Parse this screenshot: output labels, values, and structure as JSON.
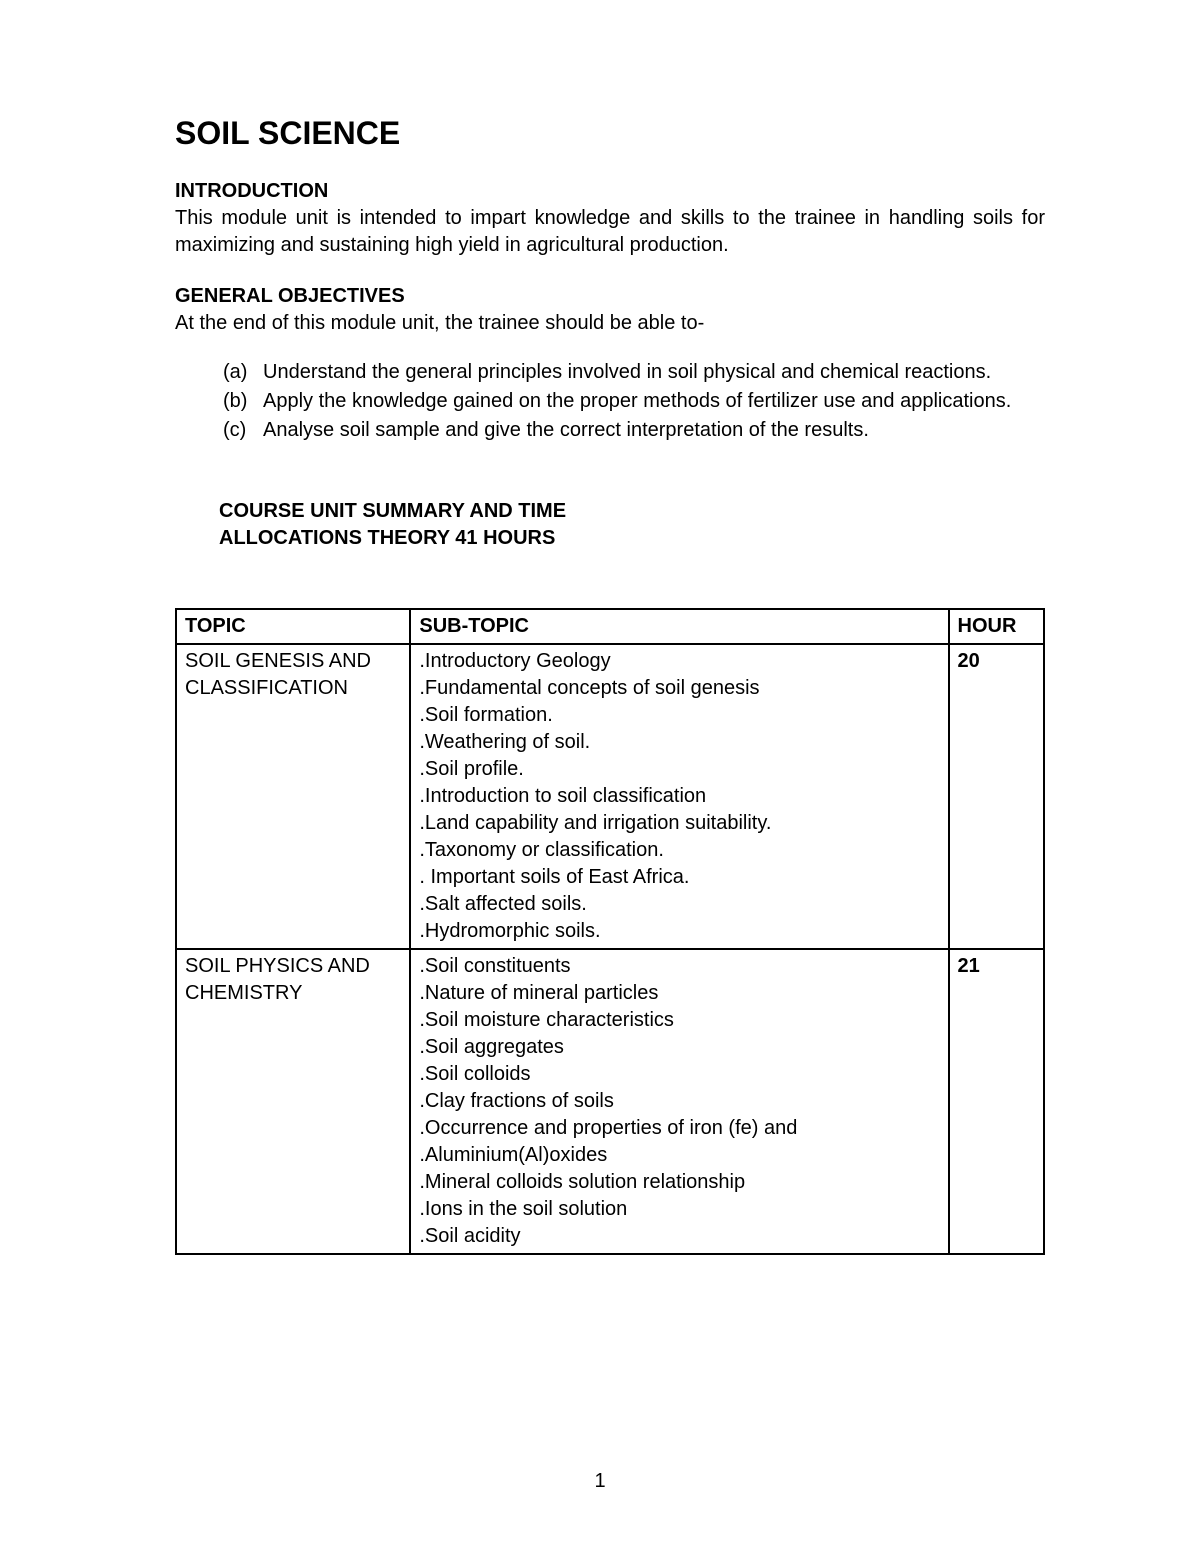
{
  "title": "SOIL SCIENCE",
  "intro": {
    "heading": "INTRODUCTION",
    "text": " This module unit is intended to impart knowledge and skills to the trainee in handling soils  for maximizing and sustaining high  yield in agricultural production."
  },
  "objectives": {
    "heading": "GENERAL OBJECTIVES",
    "lead": "At the end of this module unit, the trainee should be able to-",
    "items": [
      {
        "marker": "(a)",
        "text": "Understand the general principles involved in  soil  physical  and chemical  reactions."
      },
      {
        "marker": "(b)",
        "text": "Apply the knowledge gained on the proper methods of fertilizer use and applications."
      },
      {
        "marker": "(c)",
        "text": "Analyse soil sample and give the correct interpretation of the results."
      }
    ]
  },
  "course_summary": {
    "line1": "COURSE   UNIT SUMMARY AND TIME",
    "line2": " ALLOCATIONS THEORY 41 HOURS"
  },
  "table": {
    "headers": {
      "topic": "TOPIC",
      "subtopic": "SUB-TOPIC",
      "hour": "HOUR"
    },
    "rows": [
      {
        "topic": "SOIL GENESIS AND CLASSIFICATION",
        "subtopics": [
          ".Introductory Geology",
          ".Fundamental concepts of soil genesis",
          ".Soil formation.",
          ".Weathering of soil.",
          ".Soil profile.",
          ".Introduction to soil classification",
          ".Land capability and irrigation suitability.",
          ".Taxonomy or classification.",
          ". Important soils of East Africa.",
          ".Salt affected soils.",
          ".Hydromorphic soils."
        ],
        "hour": "20"
      },
      {
        "topic": "SOIL PHYSICS AND CHEMISTRY",
        "subtopics": [
          ".Soil constituents",
          ".Nature of mineral particles",
          ".Soil moisture characteristics",
          ".Soil aggregates",
          ".Soil colloids",
          ".Clay fractions of soils",
          ".Occurrence and properties of iron (fe) and  .Aluminium(Al)oxides",
          ".Mineral colloids solution relationship",
          ".Ions in the soil solution",
          ".Soil acidity"
        ],
        "hour": "21"
      }
    ]
  },
  "page_number": "1",
  "colors": {
    "text": "#000000",
    "background": "#ffffff",
    "border": "#000000"
  },
  "typography": {
    "title_fontsize": 32,
    "heading_fontsize": 20,
    "body_fontsize": 20,
    "font_family": "Arial"
  }
}
